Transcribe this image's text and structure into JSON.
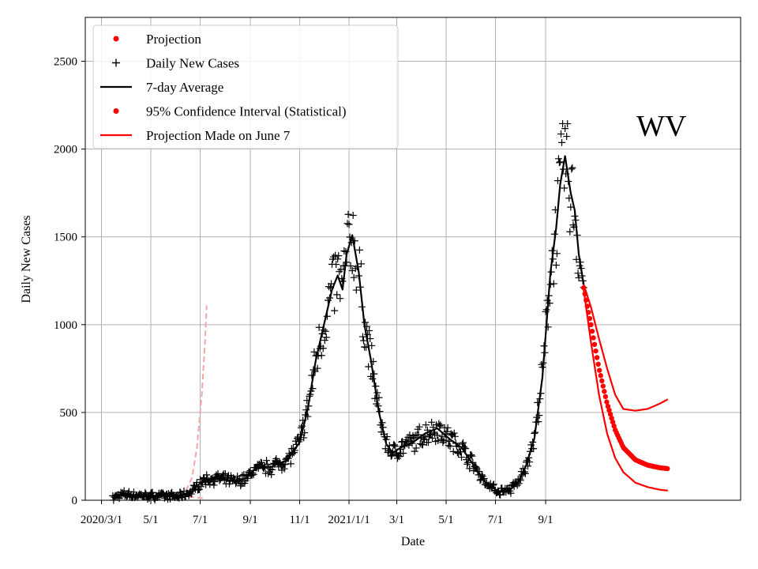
{
  "chart_data": {
    "type": "line",
    "title": "",
    "state_label": "WV",
    "xlabel": "Date",
    "ylabel": "Daily New Cases",
    "ylim": [
      0,
      2750
    ],
    "xlim_days": [
      -20,
      790
    ],
    "yticks": [
      0,
      500,
      1000,
      1500,
      2000,
      2500
    ],
    "xticks": [
      {
        "label": "2020/3/1",
        "day": 0
      },
      {
        "label": "5/1",
        "day": 61
      },
      {
        "label": "7/1",
        "day": 122
      },
      {
        "label": "9/1",
        "day": 184
      },
      {
        "label": "11/1",
        "day": 245
      },
      {
        "label": "2021/1/1",
        "day": 306
      },
      {
        "label": "3/1",
        "day": 365
      },
      {
        "label": "5/1",
        "day": 426
      },
      {
        "label": "7/1",
        "day": 487
      },
      {
        "label": "9/1",
        "day": 549
      }
    ],
    "grid": true,
    "legend_position": "top-left",
    "legend": [
      {
        "label": "Projection",
        "marker": "dot",
        "color": "#ff0000"
      },
      {
        "label": "Daily New Cases",
        "marker": "plus",
        "color": "#000000"
      },
      {
        "label": "7-day Average",
        "marker": "line",
        "color": "#000000"
      },
      {
        "label": "95% Confidence Interval (Statistical)",
        "marker": "dot",
        "color": "#ff0000"
      },
      {
        "label": "Projection Made on June 7",
        "marker": "line",
        "color": "#ff0000"
      }
    ],
    "seven_day_average_keypoints": [
      [
        14,
        10
      ],
      [
        20,
        25
      ],
      [
        30,
        35
      ],
      [
        40,
        28
      ],
      [
        60,
        25
      ],
      [
        80,
        25
      ],
      [
        95,
        20
      ],
      [
        110,
        45
      ],
      [
        125,
        110
      ],
      [
        140,
        125
      ],
      [
        155,
        115
      ],
      [
        170,
        110
      ],
      [
        180,
        130
      ],
      [
        190,
        180
      ],
      [
        210,
        190
      ],
      [
        230,
        230
      ],
      [
        245,
        330
      ],
      [
        255,
        520
      ],
      [
        265,
        800
      ],
      [
        275,
        1000
      ],
      [
        285,
        1200
      ],
      [
        292,
        1280
      ],
      [
        298,
        1200
      ],
      [
        303,
        1400
      ],
      [
        310,
        1510
      ],
      [
        318,
        1300
      ],
      [
        325,
        1000
      ],
      [
        333,
        800
      ],
      [
        343,
        500
      ],
      [
        352,
        320
      ],
      [
        360,
        270
      ],
      [
        370,
        300
      ],
      [
        385,
        330
      ],
      [
        400,
        380
      ],
      [
        415,
        410
      ],
      [
        430,
        350
      ],
      [
        445,
        300
      ],
      [
        460,
        200
      ],
      [
        475,
        100
      ],
      [
        490,
        50
      ],
      [
        505,
        60
      ],
      [
        515,
        100
      ],
      [
        525,
        200
      ],
      [
        535,
        350
      ],
      [
        545,
        700
      ],
      [
        550,
        1000
      ],
      [
        555,
        1300
      ],
      [
        562,
        1550
      ],
      [
        567,
        1800
      ],
      [
        573,
        1960
      ],
      [
        580,
        1750
      ],
      [
        585,
        1650
      ],
      [
        590,
        1400
      ],
      [
        596,
        1230
      ]
    ],
    "daily_cases_spread": 0.15,
    "projection_keypoints": [
      [
        596,
        1210
      ],
      [
        605,
        1000
      ],
      [
        615,
        750
      ],
      [
        625,
        550
      ],
      [
        635,
        400
      ],
      [
        645,
        300
      ],
      [
        660,
        230
      ],
      [
        675,
        200
      ],
      [
        690,
        185
      ],
      [
        700,
        180
      ]
    ],
    "ci_upper_keypoints": [
      [
        596,
        1230
      ],
      [
        605,
        1100
      ],
      [
        615,
        920
      ],
      [
        625,
        750
      ],
      [
        635,
        600
      ],
      [
        645,
        520
      ],
      [
        660,
        510
      ],
      [
        675,
        520
      ],
      [
        690,
        550
      ],
      [
        700,
        575
      ]
    ],
    "ci_lower_keypoints": [
      [
        596,
        1200
      ],
      [
        605,
        900
      ],
      [
        615,
        600
      ],
      [
        625,
        380
      ],
      [
        635,
        240
      ],
      [
        645,
        160
      ],
      [
        660,
        100
      ],
      [
        675,
        75
      ],
      [
        690,
        60
      ],
      [
        700,
        55
      ]
    ],
    "june7_projection_keypoints": [
      [
        97,
        20
      ],
      [
        105,
        60
      ],
      [
        112,
        130
      ],
      [
        118,
        300
      ],
      [
        124,
        600
      ],
      [
        128,
        900
      ],
      [
        130,
        1110
      ]
    ],
    "june7_projection_lower_keypoints": [
      [
        97,
        20
      ],
      [
        105,
        20
      ],
      [
        112,
        18
      ],
      [
        118,
        15
      ],
      [
        124,
        12
      ],
      [
        128,
        8
      ]
    ]
  }
}
